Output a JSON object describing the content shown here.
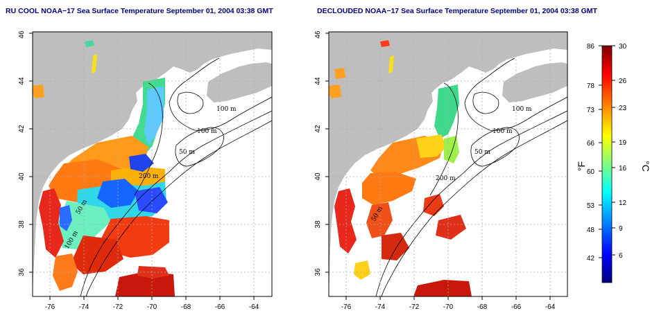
{
  "panels": [
    {
      "title": "RU COOL NOAA−17 Sea Surface Temperature September 01, 2004 03:38 GMT",
      "contour_labels": [
        "100 m",
        "100 m",
        "50 m",
        "200 m",
        "50 m",
        "100 m"
      ]
    },
    {
      "title": "DECLOUDED NOAA−17 Sea Surface Temperature September 01, 2004 03:38 GMT",
      "contour_labels": [
        "100 m",
        "100 m",
        "50 m",
        "200 m",
        "50 m"
      ]
    }
  ],
  "axes": {
    "x_ticks": [
      "-76",
      "-74",
      "-72",
      "-70",
      "-68",
      "-66",
      "-64"
    ],
    "y_ticks": [
      "36",
      "38",
      "40",
      "42",
      "44",
      "46"
    ]
  },
  "colorbar": {
    "fahrenheit_unit": "°F",
    "celsius_unit": "°C",
    "fahrenheit_ticks": [
      "86",
      "78",
      "73",
      "66",
      "60",
      "53",
      "48",
      "42"
    ],
    "celsius_ticks": [
      "30",
      "26",
      "23",
      "19",
      "16",
      "12",
      "9",
      "6"
    ],
    "colors": [
      "#00007f",
      "#0000ff",
      "#0080ff",
      "#00ffff",
      "#80ff80",
      "#ffff00",
      "#ff8000",
      "#ff0000",
      "#7f0000"
    ]
  },
  "colors": {
    "land": "#bebebe",
    "ocean_nodata": "#ffffff",
    "grid": "#aaaaaa"
  }
}
